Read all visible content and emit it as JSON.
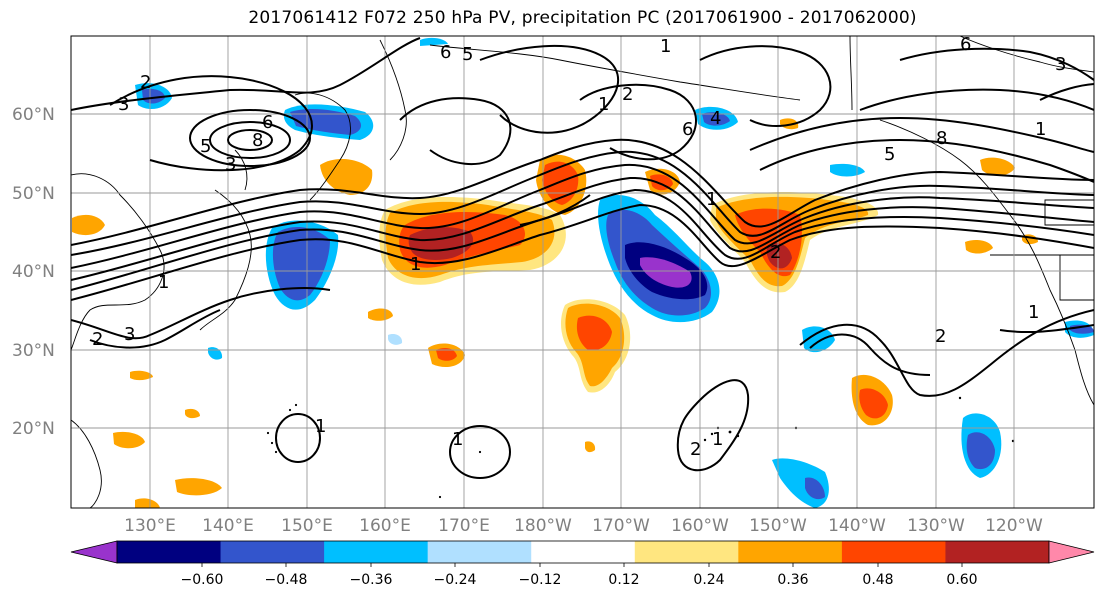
{
  "title": "2017061412 F072 250 hPa PV, precipitation PC (2017061900 - 2017062000)",
  "map": {
    "lat_labels": [
      "60°N",
      "50°N",
      "40°N",
      "30°N",
      "20°N"
    ],
    "lon_labels": [
      "130°E",
      "140°E",
      "150°E",
      "160°E",
      "170°E",
      "180°W",
      "170°W",
      "160°W",
      "150°W",
      "140°W",
      "130°W",
      "120°W"
    ],
    "pv_contour_labels": [
      "2",
      "3",
      "6",
      "8",
      "5",
      "3",
      "6",
      "5",
      "1",
      "2",
      "6",
      "4",
      "1",
      "8",
      "5",
      "6",
      "3",
      "1",
      "1",
      "1",
      "2",
      "3",
      "2",
      "1",
      "1",
      "1",
      "2",
      "1",
      "2",
      "1"
    ]
  },
  "colorbar": {
    "tick_labels": [
      "−0.60",
      "−0.48",
      "−0.36",
      "−0.24",
      "−0.12",
      "0.12",
      "0.24",
      "0.36",
      "0.48",
      "0.60"
    ],
    "colors": [
      "#9933cc",
      "#000080",
      "#3355cc",
      "#00bfff",
      "#b0e0ff",
      "#ffffff",
      "#ffe680",
      "#ffa500",
      "#ff4500",
      "#b22222",
      "#ff88aa"
    ]
  }
}
